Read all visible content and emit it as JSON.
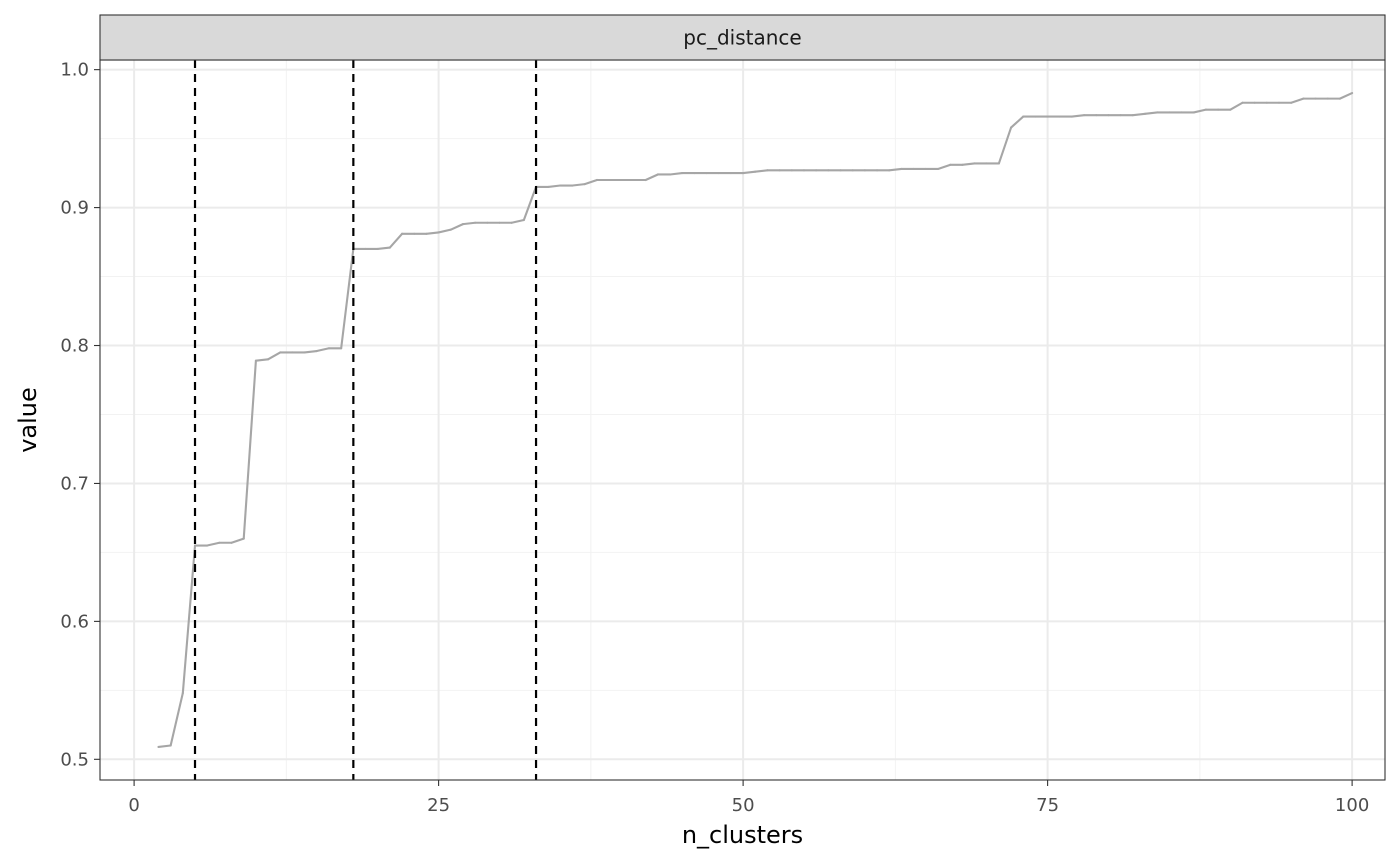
{
  "chart_data": {
    "type": "line",
    "facet_label": "pc_distance",
    "xlabel": "n_clusters",
    "ylabel": "value",
    "xlim": [
      -2.8,
      102.7
    ],
    "ylim": [
      0.485,
      1.007
    ],
    "x_ticks": [
      0,
      25,
      50,
      75,
      100
    ],
    "y_ticks": [
      0.5,
      0.6,
      0.7,
      0.8,
      0.9,
      1.0
    ],
    "x_tick_labels": [
      "0",
      "25",
      "50",
      "75",
      "100"
    ],
    "y_tick_labels": [
      "0.5",
      "0.6",
      "0.7",
      "0.8",
      "0.9",
      "1.0"
    ],
    "grid": true,
    "line_color": "#a6a6a6",
    "vline_color": "#000000",
    "vlines": [
      5,
      18,
      33
    ],
    "series": [
      {
        "x": [
          2,
          3,
          4,
          5,
          6,
          7,
          8,
          9,
          10,
          11,
          12,
          13,
          14,
          15,
          16,
          17,
          18,
          19,
          20,
          21,
          22,
          23,
          24,
          25,
          26,
          27,
          28,
          29,
          30,
          31,
          32,
          33,
          34,
          35,
          36,
          37,
          38,
          39,
          40,
          41,
          42,
          43,
          44,
          45,
          46,
          47,
          48,
          49,
          50,
          51,
          52,
          53,
          54,
          55,
          56,
          57,
          58,
          59,
          60,
          61,
          62,
          63,
          64,
          65,
          66,
          67,
          68,
          69,
          70,
          71,
          72,
          73,
          74,
          75,
          76,
          77,
          78,
          79,
          80,
          81,
          82,
          83,
          84,
          85,
          86,
          87,
          88,
          89,
          90,
          91,
          92,
          93,
          94,
          95,
          96,
          97,
          98,
          99,
          100
        ],
        "values": [
          0.509,
          0.51,
          0.548,
          0.655,
          0.655,
          0.657,
          0.657,
          0.66,
          0.789,
          0.79,
          0.795,
          0.795,
          0.795,
          0.796,
          0.798,
          0.798,
          0.87,
          0.87,
          0.87,
          0.871,
          0.881,
          0.881,
          0.881,
          0.882,
          0.884,
          0.888,
          0.889,
          0.889,
          0.889,
          0.889,
          0.891,
          0.915,
          0.915,
          0.916,
          0.916,
          0.917,
          0.92,
          0.92,
          0.92,
          0.92,
          0.92,
          0.924,
          0.924,
          0.925,
          0.925,
          0.925,
          0.925,
          0.925,
          0.925,
          0.926,
          0.927,
          0.927,
          0.927,
          0.927,
          0.927,
          0.927,
          0.927,
          0.927,
          0.927,
          0.927,
          0.927,
          0.928,
          0.928,
          0.928,
          0.928,
          0.931,
          0.931,
          0.932,
          0.932,
          0.932,
          0.958,
          0.966,
          0.966,
          0.966,
          0.966,
          0.966,
          0.967,
          0.967,
          0.967,
          0.967,
          0.967,
          0.968,
          0.969,
          0.969,
          0.969,
          0.969,
          0.971,
          0.971,
          0.971,
          0.976,
          0.976,
          0.976,
          0.976,
          0.976,
          0.979,
          0.979,
          0.979,
          0.979,
          0.983
        ]
      }
    ]
  }
}
